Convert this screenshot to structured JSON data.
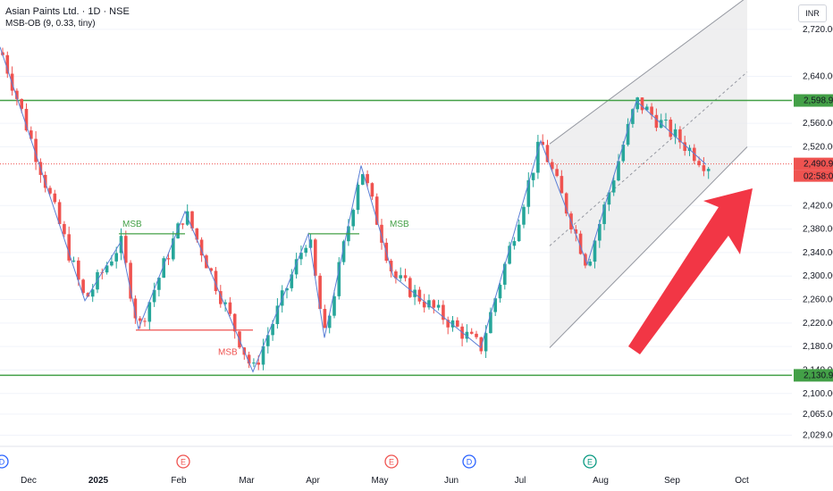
{
  "header": {
    "symbol": "Asian Paints Ltd. · 1D · NSE",
    "indicator": "MSB-OB (9, 0.33, tiny)"
  },
  "currency_button": "INR",
  "colors": {
    "up": "#26a69a",
    "down": "#ef5350",
    "level_line": "#43a047",
    "zigzag": "#5b7fd6",
    "arrow": "#f23645",
    "channel_fill": "#e8e8ea",
    "channel_line": "#9598a1"
  },
  "chart_data": {
    "type": "candlestick",
    "title": "Asian Paints Ltd. · 1D · NSE",
    "y_axis": {
      "ticks": [
        2029.0,
        2065.0,
        2100.0,
        2140.0,
        2180.0,
        2220.0,
        2260.0,
        2300.0,
        2340.0,
        2380.0,
        2420.0,
        2520.0,
        2560.0,
        2640.0,
        2720.0
      ],
      "tick_labels": [
        "2,029.00",
        "2,065.00",
        "2,100.00",
        "2,140.00",
        "2,180.00",
        "2,220.00",
        "2,260.00",
        "2,300.00",
        "2,340.00",
        "2,380.00",
        "2,420.00",
        "2,520.00",
        "2,560.00",
        "2,640.00",
        "2,720.00"
      ],
      "range": [
        2010,
        2770
      ]
    },
    "x_axis": {
      "tick_labels": [
        "Dec",
        "2025",
        "Feb",
        "Mar",
        "Apr",
        "May",
        "Jun",
        "Jul",
        "Aug",
        "Sep",
        "Oct"
      ],
      "bold": [
        "2025"
      ]
    },
    "price_labels": [
      {
        "value": 2598.95,
        "text": "2,598.95",
        "kind": "resistance"
      },
      {
        "value": 2130.95,
        "text": "2,130.95",
        "kind": "support"
      },
      {
        "value": 2490.9,
        "text": "2,490.90",
        "kind": "last"
      }
    ],
    "countdown": "02:58:08",
    "horizontal_levels": [
      2598.95,
      2130.95
    ],
    "last_price": 2490.9,
    "annotations": [
      {
        "text": "MSB",
        "kind": "bull",
        "value": 2372
      },
      {
        "text": "MSB",
        "kind": "bear",
        "value": 2178
      },
      {
        "text": "MSB",
        "kind": "bull",
        "value": 2372
      }
    ],
    "event_markers": [
      {
        "letter": "D",
        "at": "Nov"
      },
      {
        "letter": "E",
        "at": "Feb"
      },
      {
        "letter": "E",
        "at": "May"
      },
      {
        "letter": "D",
        "at": "Jun"
      },
      {
        "letter": "E",
        "at": "Aug"
      }
    ],
    "zigzag_values": [
      2690,
      2258,
      2358,
      2210,
      2410,
      2137,
      2372,
      2195,
      2488,
      2300,
      2178,
      2530,
      2320,
      2598,
      2490
    ],
    "channel": {
      "upper_start": 2525,
      "upper_end": 2775,
      "lower_start": 2178,
      "lower_end": 2520
    }
  }
}
